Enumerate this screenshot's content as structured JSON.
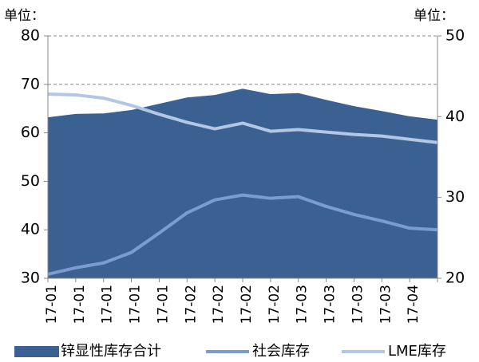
{
  "chart_data": {
    "type": "combo",
    "y_unit_label": "单位：",
    "y2_unit_label": "单位：",
    "categories": [
      "17-01",
      "17-01",
      "17-01",
      "17-01",
      "17-01",
      "17-02",
      "17-02",
      "17-02",
      "17-02",
      "17-03",
      "17-03",
      "17-03",
      "17-03",
      "17-04",
      null
    ],
    "series": [
      {
        "name": "锌显性库存合计",
        "type": "area",
        "axis": "y",
        "color": "#3b6192",
        "values": [
          63.2,
          63.9,
          64.0,
          64.7,
          66.0,
          67.3,
          67.8,
          69.1,
          68.0,
          68.2,
          66.8,
          65.5,
          64.5,
          63.4,
          62.7
        ]
      },
      {
        "name": "社会库存",
        "type": "line",
        "axis": "y2",
        "color": "#7b9ccf",
        "values": [
          20.5,
          21.3,
          21.9,
          23.2,
          25.6,
          28.1,
          29.7,
          30.3,
          29.9,
          30.1,
          28.9,
          27.9,
          27.1,
          26.2,
          26.0
        ]
      },
      {
        "name": "LME库存",
        "type": "line",
        "axis": "y2",
        "color": "#b3c6e4",
        "values": [
          42.8,
          42.7,
          42.3,
          41.4,
          40.3,
          39.3,
          38.5,
          39.2,
          38.2,
          38.4,
          38.1,
          37.8,
          37.6,
          37.2,
          36.8
        ]
      }
    ],
    "ylim": [
      30,
      80
    ],
    "yticks": [
      30,
      40,
      50,
      60,
      70,
      80
    ],
    "y2lim": [
      20,
      50
    ],
    "y2ticks": [
      20,
      30,
      40,
      50
    ],
    "grid": true
  }
}
